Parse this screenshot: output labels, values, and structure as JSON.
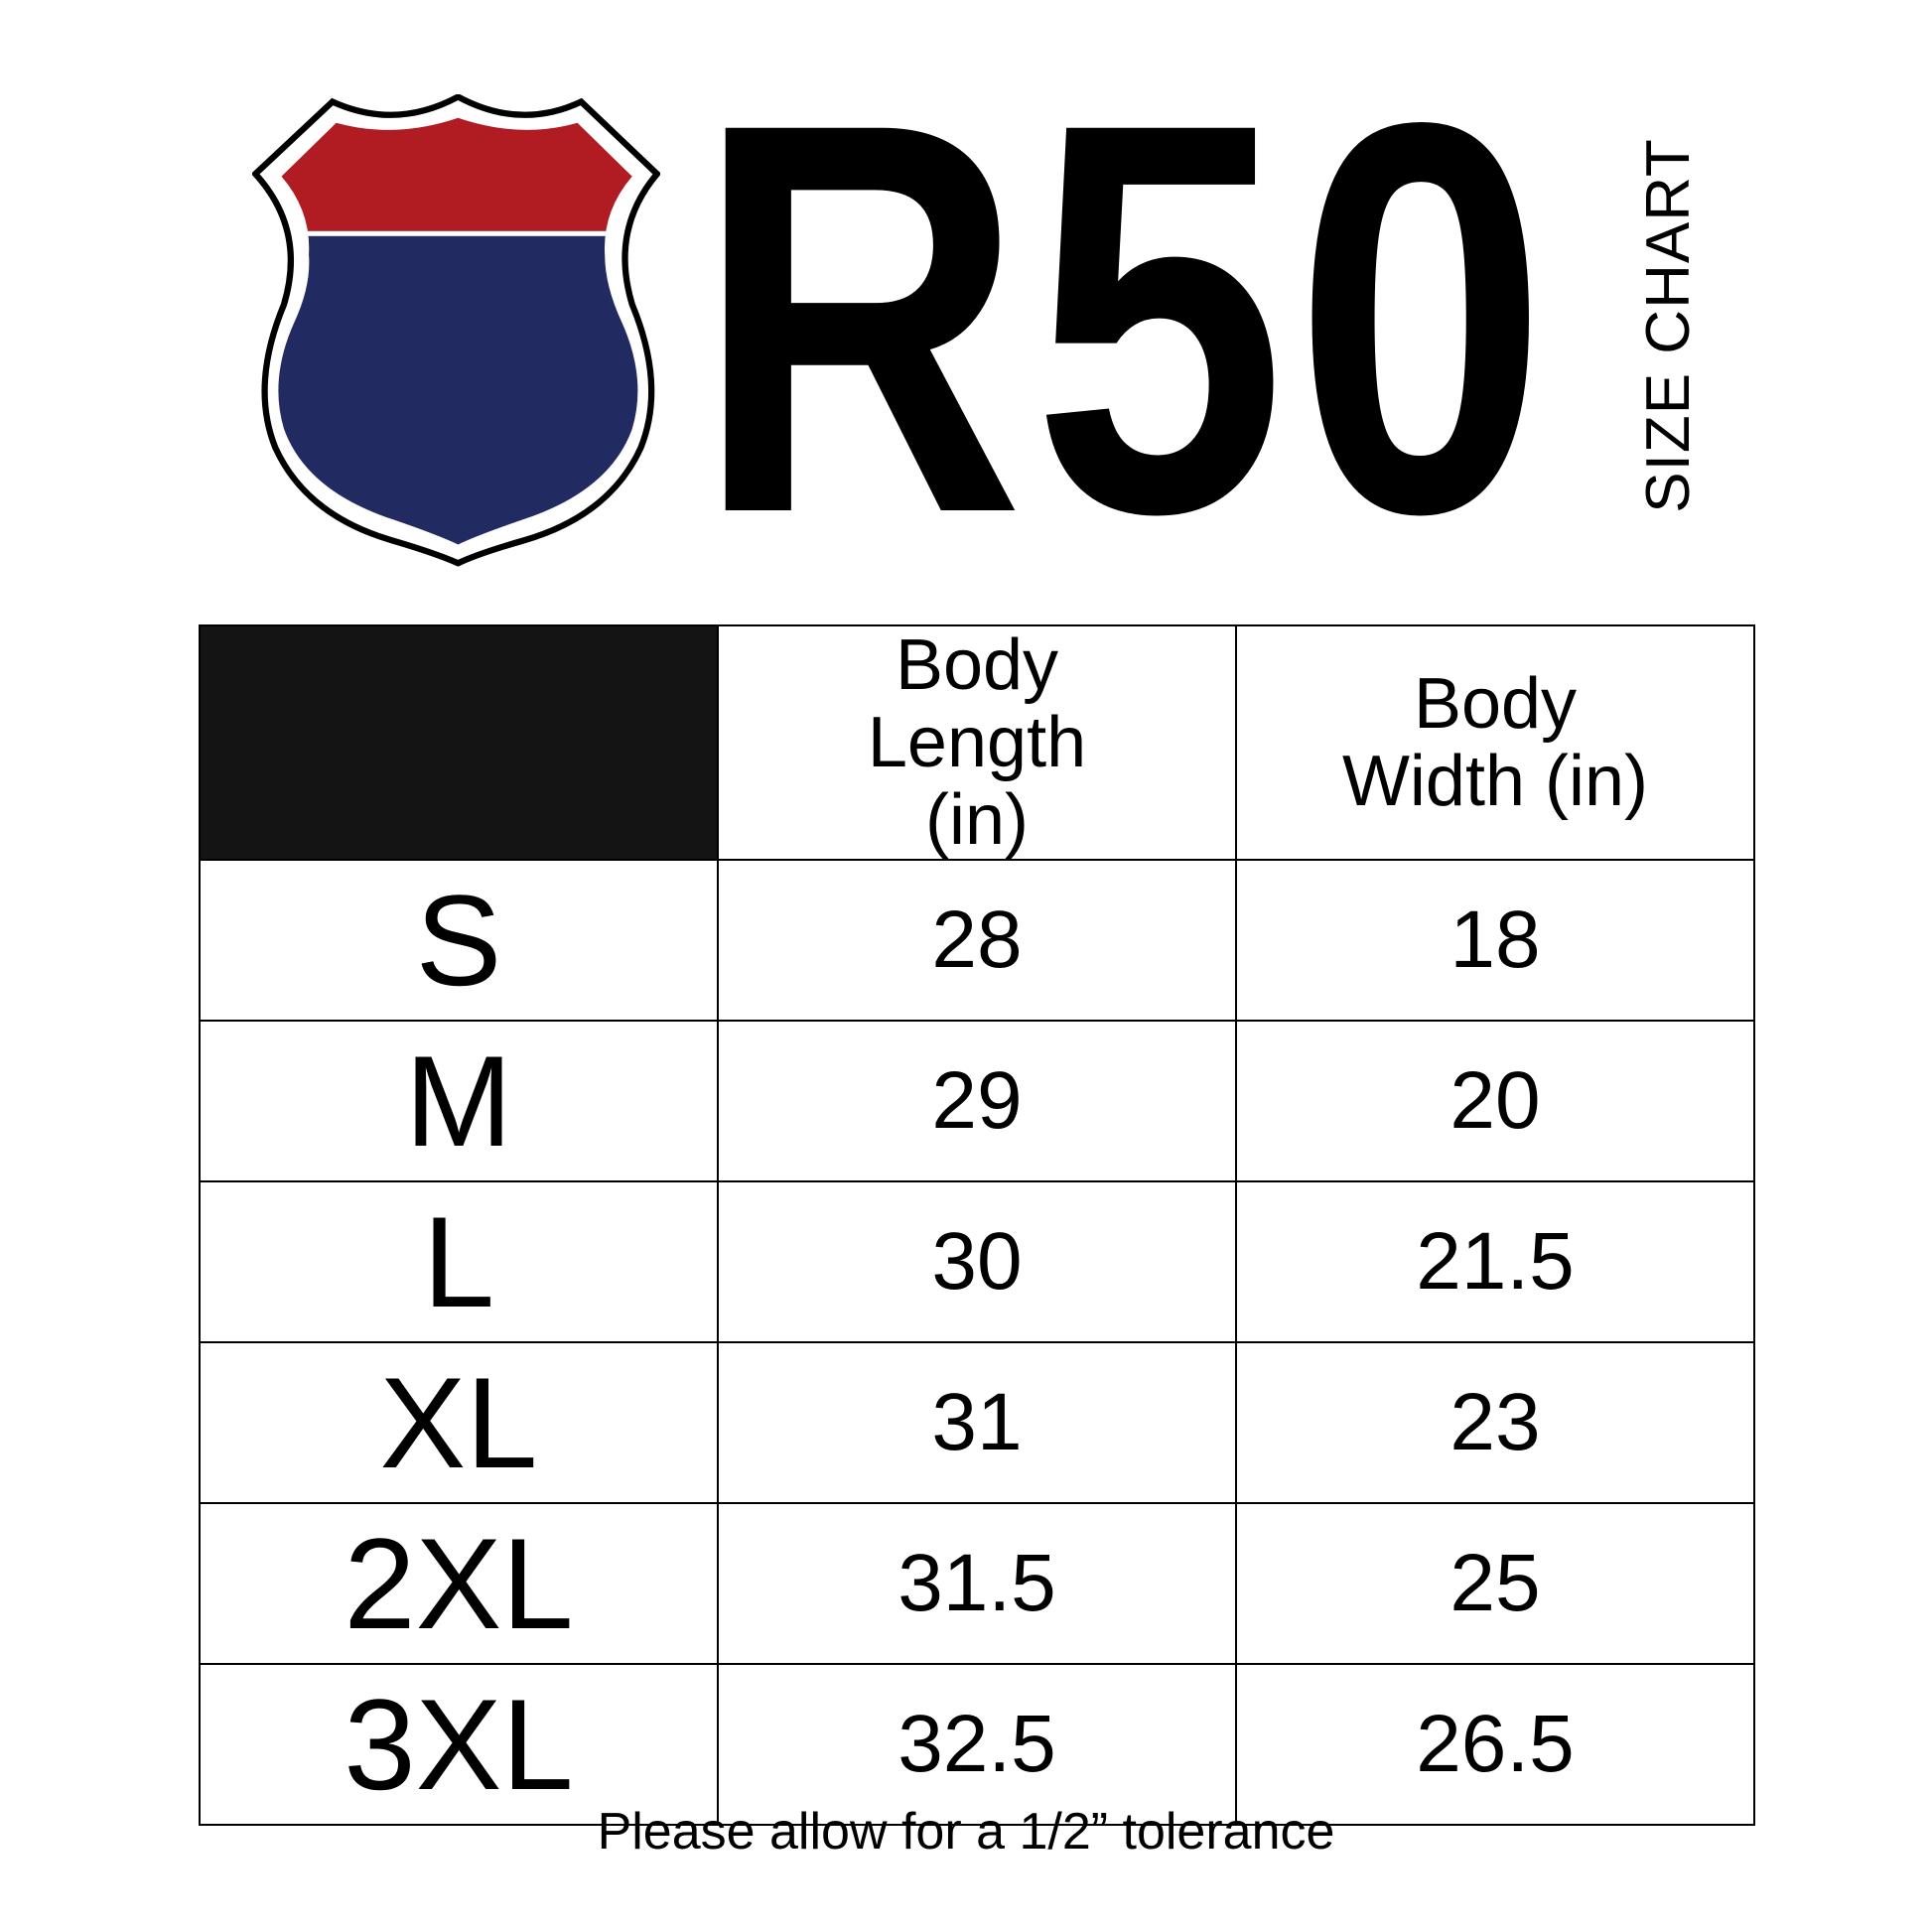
{
  "brand": {
    "logo_text": "R50",
    "subtitle": "SIZE CHART",
    "colors": {
      "shield_top": "#B01C22",
      "shield_bottom": "#222A62"
    }
  },
  "table": {
    "headers": [
      "",
      "Body Length (in)",
      "Body Width (in)"
    ],
    "rows": [
      {
        "size": "S",
        "length": "28",
        "width": "18"
      },
      {
        "size": "M",
        "length": "29",
        "width": "20"
      },
      {
        "size": "L",
        "length": "30",
        "width": "21.5"
      },
      {
        "size": "XL",
        "length": "31",
        "width": "23"
      },
      {
        "size": "2XL",
        "length": "31.5",
        "width": "25"
      },
      {
        "size": "3XL",
        "length": "32.5",
        "width": "26.5"
      }
    ]
  },
  "footer": "Please allow for a 1/2” tolerance"
}
